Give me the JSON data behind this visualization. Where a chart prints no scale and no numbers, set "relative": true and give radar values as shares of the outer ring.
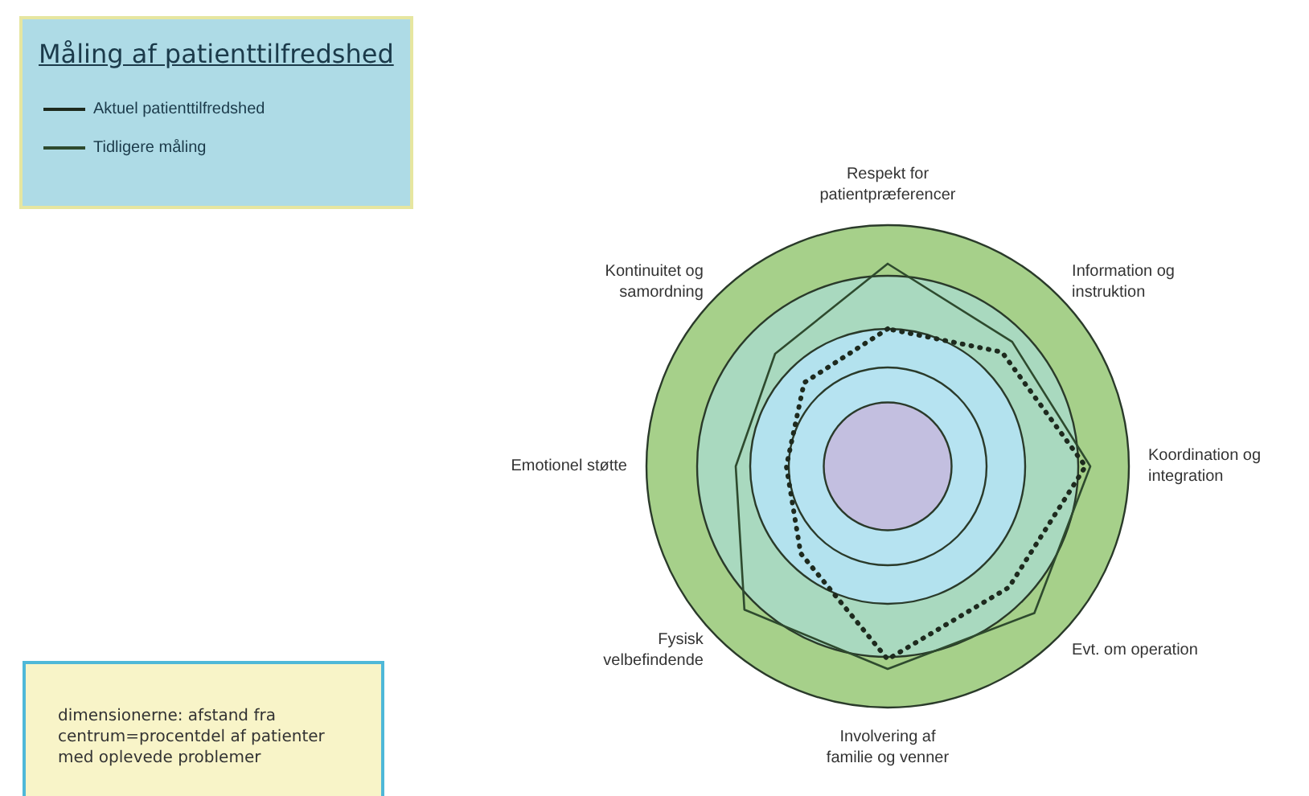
{
  "chart_data": {
    "type": "radar",
    "relative": true,
    "legend_title": "Måling af patienttilfredshed",
    "legend": "top left",
    "categories": [
      "Respekt for patientpræferencer",
      "Information og instruktion",
      "Koordination og integration",
      "Evt. om operation",
      "Involvering af familie og venner",
      "Fysisk velbefindende",
      "Emotionel støtte",
      "Kontinuitet og samordning"
    ],
    "series": [
      {
        "name": "Aktuel patienttilfredshed",
        "color": "#1e2a1e",
        "line_style": "dotted",
        "values": [
          0.57,
          0.67,
          0.82,
          0.71,
          0.8,
          0.51,
          0.42,
          0.49
        ]
      },
      {
        "name": "Tidligere måling",
        "color": "#2e4a2e",
        "line_style": "solid",
        "values": [
          0.84,
          0.73,
          0.84,
          0.86,
          0.84,
          0.84,
          0.63,
          0.66
        ]
      }
    ],
    "annotations": [
      "dimensionerne: afstand fra centrum=procentdel af patienter med oplevede problemer"
    ]
  }
}
